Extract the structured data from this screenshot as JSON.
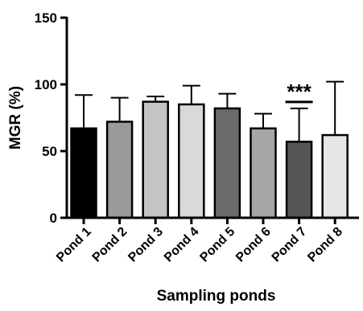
{
  "chart_data": {
    "type": "bar",
    "title": "",
    "xlabel": "Sampling ponds",
    "ylabel": "MGR (%)",
    "ylim": [
      0,
      150
    ],
    "yticks": [
      0,
      50,
      100,
      150
    ],
    "grid": false,
    "categories": [
      "Pond 1",
      "Pond 2",
      "Pond 3",
      "Pond 4",
      "Pond 5",
      "Pond 6",
      "Pond 7",
      "Pond 8"
    ],
    "values": [
      67,
      72,
      87,
      85,
      82,
      67,
      57,
      62
    ],
    "error": [
      25,
      18,
      4,
      14,
      11,
      11,
      25,
      40
    ],
    "bar_colors": [
      "#000000",
      "#9a9a9a",
      "#c4c4c4",
      "#d9d9d9",
      "#6a6a6a",
      "#a6a6a6",
      "#555555",
      "#e6e6e6"
    ],
    "annotations": [
      {
        "category": "Pond 7",
        "text": "***"
      }
    ]
  }
}
